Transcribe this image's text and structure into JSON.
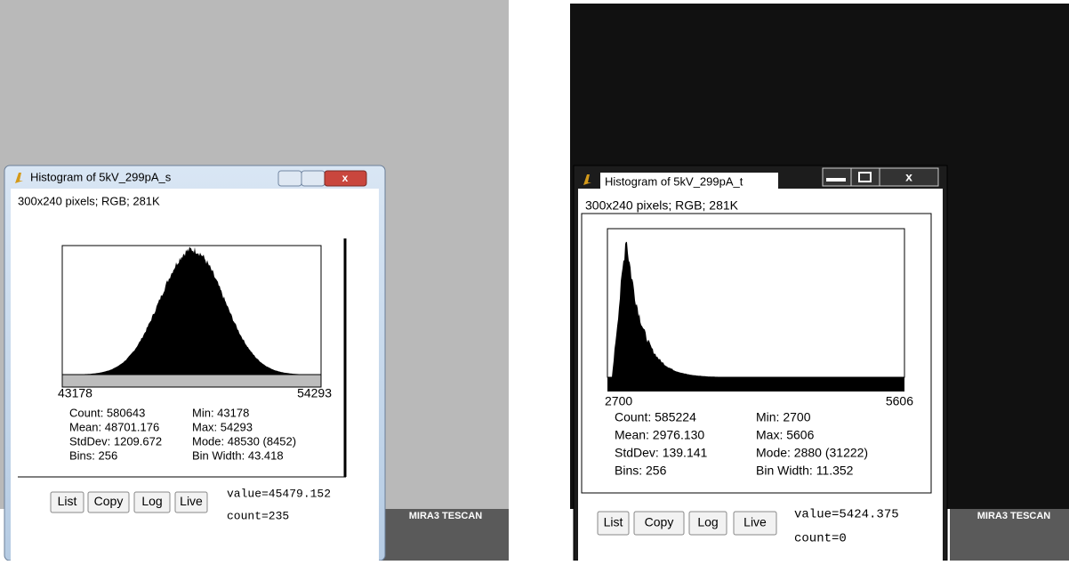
{
  "backgrounds": [
    {
      "label": "MIRA3 TESCAN"
    },
    {
      "label": "MIRA3 TESCAN"
    }
  ],
  "windows": [
    {
      "title": "Histogram of 5kV_299pA_s",
      "info": "300x240 pixels; RGB; 281K",
      "range_min": "43178",
      "range_max": "54293",
      "stats": [
        [
          "Count: 580643",
          "Min: 43178"
        ],
        [
          "Mean: 48701.176",
          "Max: 54293"
        ],
        [
          "StdDev: 1209.672",
          "Mode: 48530 (8452)"
        ],
        [
          "Bins: 256",
          "Bin Width: 43.418"
        ]
      ],
      "buttons": [
        "List",
        "Copy",
        "Log",
        "Live"
      ],
      "value": "value=45479.152",
      "count": "count=235"
    },
    {
      "title": "Histogram of 5kV_299pA_t",
      "info": "300x240 pixels; RGB; 281K",
      "range_min": "2700",
      "range_max": "5606",
      "stats": [
        [
          "Count: 585224",
          "Min: 2700"
        ],
        [
          "Mean: 2976.130",
          "Max: 5606"
        ],
        [
          "StdDev: 139.141",
          "Mode: 2880 (31222)"
        ],
        [
          "Bins: 256",
          "Bin Width: 11.352"
        ]
      ],
      "buttons": [
        "List",
        "Copy",
        "Log",
        "Live"
      ],
      "value": "value=5424.375",
      "count": "count=0"
    }
  ]
}
